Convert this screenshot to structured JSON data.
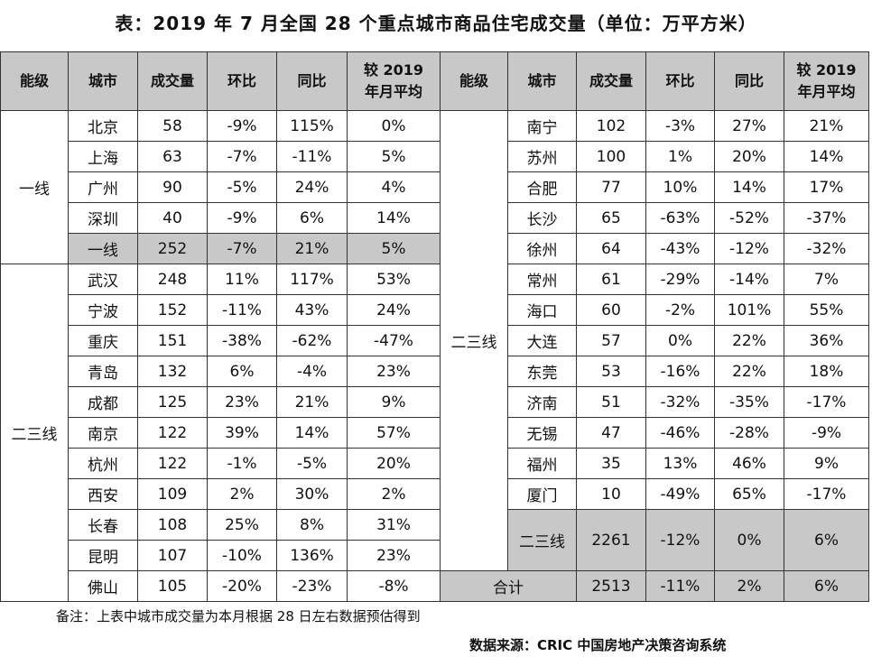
{
  "title": "表：2019 年 7 月全国 28 个重点城市商品住宅成交量（单位：万平方米）",
  "headers": [
    "能级",
    "城市",
    "成交量",
    "环比",
    "同比",
    "较 2019",
    "年月平均"
  ],
  "levels": {
    "tier1": "一线",
    "tier23": "二三线"
  },
  "left_rows": [
    {
      "city": "北京",
      "volume": "58",
      "mom": "-9%",
      "yoy": "115%",
      "avg": "0%"
    },
    {
      "city": "上海",
      "volume": "63",
      "mom": "-7%",
      "yoy": "-11%",
      "avg": "5%"
    },
    {
      "city": "广州",
      "volume": "90",
      "mom": "-5%",
      "yoy": "24%",
      "avg": "4%"
    },
    {
      "city": "深圳",
      "volume": "40",
      "mom": "-9%",
      "yoy": "6%",
      "avg": "14%"
    },
    {
      "city": "一线",
      "volume": "252",
      "mom": "-7%",
      "yoy": "21%",
      "avg": "5%"
    },
    {
      "city": "武汉",
      "volume": "248",
      "mom": "11%",
      "yoy": "117%",
      "avg": "53%"
    },
    {
      "city": "宁波",
      "volume": "152",
      "mom": "-11%",
      "yoy": "43%",
      "avg": "24%"
    },
    {
      "city": "重庆",
      "volume": "151",
      "mom": "-38%",
      "yoy": "-62%",
      "avg": "-47%"
    },
    {
      "city": "青岛",
      "volume": "132",
      "mom": "6%",
      "yoy": "-4%",
      "avg": "23%"
    },
    {
      "city": "成都",
      "volume": "125",
      "mom": "23%",
      "yoy": "21%",
      "avg": "9%"
    },
    {
      "city": "南京",
      "volume": "122",
      "mom": "39%",
      "yoy": "14%",
      "avg": "57%"
    },
    {
      "city": "杭州",
      "volume": "122",
      "mom": "-1%",
      "yoy": "-5%",
      "avg": "20%"
    },
    {
      "city": "西安",
      "volume": "109",
      "mom": "2%",
      "yoy": "30%",
      "avg": "2%"
    },
    {
      "city": "长春",
      "volume": "108",
      "mom": "25%",
      "yoy": "8%",
      "avg": "31%"
    },
    {
      "city": "昆明",
      "volume": "107",
      "mom": "-10%",
      "yoy": "136%",
      "avg": "23%"
    },
    {
      "city": "佛山",
      "volume": "105",
      "mom": "-20%",
      "yoy": "-23%",
      "avg": "-8%"
    }
  ],
  "right_rows": [
    {
      "city": "南宁",
      "volume": "102",
      "mom": "-3%",
      "yoy": "27%",
      "avg": "21%"
    },
    {
      "city": "苏州",
      "volume": "100",
      "mom": "1%",
      "yoy": "20%",
      "avg": "14%"
    },
    {
      "city": "合肥",
      "volume": "77",
      "mom": "10%",
      "yoy": "14%",
      "avg": "17%"
    },
    {
      "city": "长沙",
      "volume": "65",
      "mom": "-63%",
      "yoy": "-52%",
      "avg": "-37%"
    },
    {
      "city": "徐州",
      "volume": "64",
      "mom": "-43%",
      "yoy": "-12%",
      "avg": "-32%"
    },
    {
      "city": "常州",
      "volume": "61",
      "mom": "-29%",
      "yoy": "-14%",
      "avg": "7%"
    },
    {
      "city": "海口",
      "volume": "60",
      "mom": "-2%",
      "yoy": "101%",
      "avg": "55%"
    },
    {
      "city": "大连",
      "volume": "57",
      "mom": "0%",
      "yoy": "22%",
      "avg": "36%"
    },
    {
      "city": "东莞",
      "volume": "53",
      "mom": "-16%",
      "yoy": "22%",
      "avg": "18%"
    },
    {
      "city": "济南",
      "volume": "51",
      "mom": "-32%",
      "yoy": "-35%",
      "avg": "-17%"
    },
    {
      "city": "无锡",
      "volume": "47",
      "mom": "-46%",
      "yoy": "-28%",
      "avg": "-9%"
    },
    {
      "city": "福州",
      "volume": "35",
      "mom": "13%",
      "yoy": "46%",
      "avg": "9%"
    },
    {
      "city": "厦门",
      "volume": "10",
      "mom": "-49%",
      "yoy": "65%",
      "avg": "-17%"
    }
  ],
  "subtotal": {
    "city": "二三线",
    "volume": "2261",
    "mom": "-12%",
    "yoy": "0%",
    "avg": "6%"
  },
  "total": {
    "label": "合计",
    "volume": "2513",
    "mom": "-11%",
    "yoy": "2%",
    "avg": "6%"
  },
  "note": "备注：上表中城市成交量为本月根据 28 日左右数据预估得到",
  "source": "数据来源：CRIC 中国房地产决策咨询系统"
}
